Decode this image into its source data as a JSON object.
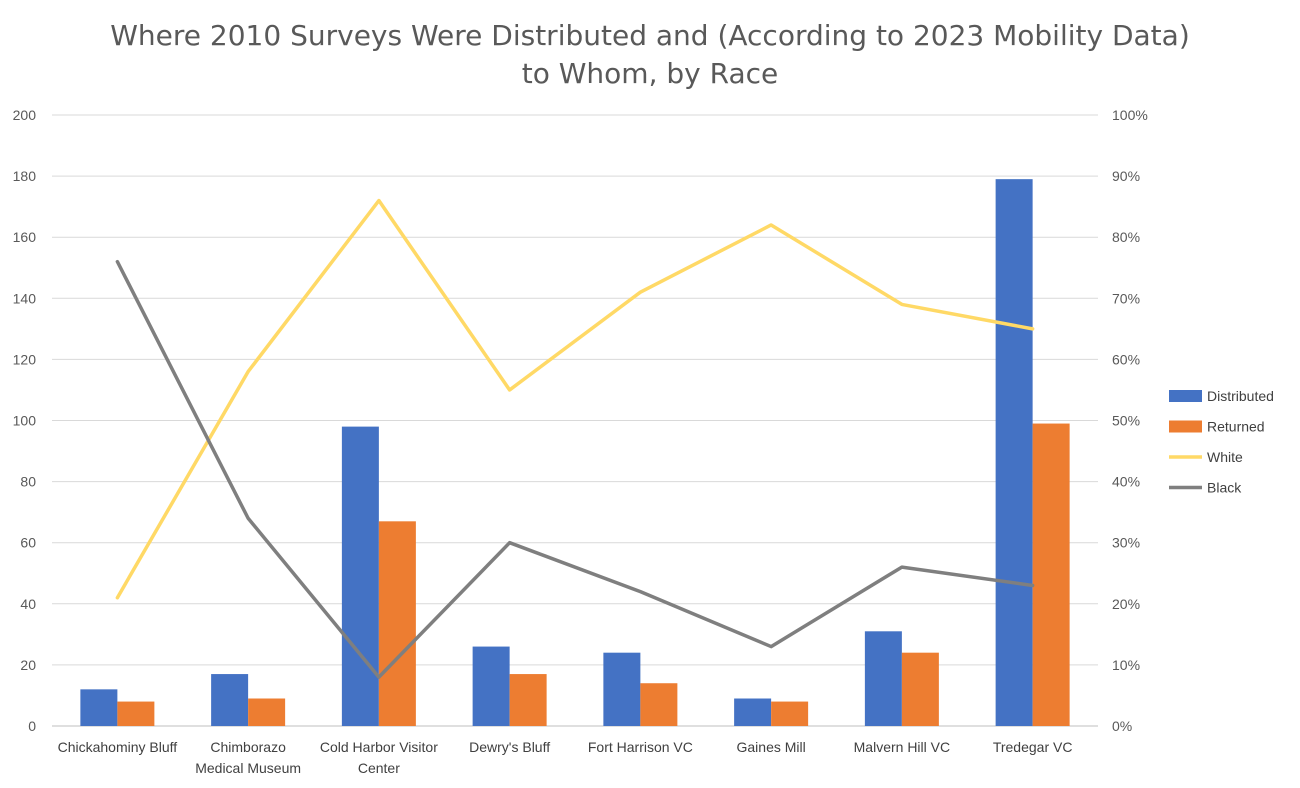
{
  "chart_data": {
    "type": "bar",
    "title_lines": [
      "Where 2010 Surveys Were Distributed and (According to 2023 Mobility Data)",
      "to Whom, by Race"
    ],
    "categories": [
      [
        "Chickahominy Bluff"
      ],
      [
        "Chimborazo",
        "Medical Museum"
      ],
      [
        "Cold Harbor Visitor",
        "Center"
      ],
      [
        "Dewry's Bluff"
      ],
      [
        "Fort Harrison VC"
      ],
      [
        "Gaines Mill"
      ],
      [
        "Malvern Hill VC"
      ],
      [
        "Tredegar VC"
      ]
    ],
    "bar_series": [
      {
        "name": "Distributed",
        "color": "#4472C4",
        "values": [
          12,
          17,
          98,
          26,
          24,
          9,
          31,
          179
        ]
      },
      {
        "name": "Returned",
        "color": "#ED7D31",
        "values": [
          8,
          9,
          67,
          17,
          14,
          8,
          24,
          99
        ]
      }
    ],
    "line_series": [
      {
        "name": "White",
        "color": "#FFD966",
        "axis": "right",
        "values": [
          21,
          58,
          86,
          55,
          71,
          82,
          69,
          65
        ]
      },
      {
        "name": "Black",
        "color": "#7F7F7F",
        "axis": "right",
        "values": [
          76,
          34,
          8,
          30,
          22,
          13,
          26,
          23
        ]
      }
    ],
    "y_left": {
      "min": 0,
      "max": 200,
      "step": 20,
      "ticks": [
        "0",
        "20",
        "40",
        "60",
        "80",
        "100",
        "120",
        "140",
        "160",
        "180",
        "200"
      ]
    },
    "y_right": {
      "min": 0,
      "max": 100,
      "step": 10,
      "ticks": [
        "0%",
        "10%",
        "20%",
        "30%",
        "40%",
        "50%",
        "60%",
        "70%",
        "80%",
        "90%",
        "100%"
      ]
    },
    "legend": [
      "Distributed",
      "Returned",
      "White",
      "Black"
    ],
    "legend_position": "right",
    "grid": true
  }
}
